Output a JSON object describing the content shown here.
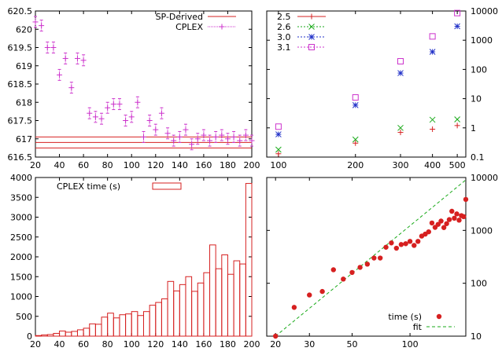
{
  "chart_data": [
    {
      "panel": "top-left",
      "type": "scatter",
      "xlim": [
        20,
        200
      ],
      "ylim": [
        616.5,
        620.5
      ],
      "xticks": [
        20,
        40,
        60,
        80,
        100,
        120,
        140,
        160,
        180,
        200
      ],
      "yticks": [
        616.5,
        617,
        617.5,
        618,
        618.5,
        619,
        619.5,
        620,
        620.5
      ],
      "ytick_labels": [
        "616.5",
        "617",
        "617.5",
        "618",
        "618.5",
        "619",
        "619.5",
        "620",
        "620.5"
      ],
      "legend_position": "top-right",
      "series": [
        {
          "name": "SP-Derived",
          "color": "#d62020",
          "kind": "hlines",
          "y": [
            616.75,
            616.9,
            617.05
          ]
        },
        {
          "name": "CPLEX",
          "color": "#cc33cc",
          "kind": "errorbars",
          "x": [
            20,
            25,
            30,
            35,
            40,
            45,
            50,
            55,
            60,
            65,
            70,
            75,
            80,
            85,
            90,
            95,
            100,
            105,
            110,
            115,
            120,
            125,
            130,
            135,
            140,
            145,
            150,
            155,
            160,
            165,
            170,
            175,
            180,
            185,
            190,
            195,
            200
          ],
          "y": [
            620.2,
            620.1,
            619.5,
            619.5,
            618.75,
            619.2,
            618.4,
            619.2,
            619.15,
            617.7,
            617.6,
            617.55,
            617.85,
            617.95,
            617.95,
            617.5,
            617.6,
            618.0,
            617.05,
            617.5,
            617.25,
            617.7,
            617.15,
            616.95,
            617.05,
            617.25,
            616.85,
            617.0,
            617.1,
            616.95,
            617.05,
            617.1,
            617.0,
            617.05,
            616.95,
            617.1,
            616.95
          ],
          "err": 0.15
        }
      ]
    },
    {
      "panel": "top-right",
      "type": "scatter",
      "xscale": "log",
      "yscale": "log",
      "xlim": [
        90,
        540
      ],
      "ylim": [
        0.1,
        10000
      ],
      "xticks": [
        100,
        200,
        300,
        400,
        500
      ],
      "yticks": [
        0.1,
        1,
        10,
        100,
        1000,
        10000
      ],
      "ytick_labels": [
        "0.1",
        "1",
        "10",
        "100",
        "1000",
        "10000"
      ],
      "legend_position": "top-left",
      "series": [
        {
          "name": "2.5",
          "color": "#d62020",
          "marker": "plus",
          "x": [
            100,
            200,
            300,
            400,
            500
          ],
          "y": [
            0.13,
            0.3,
            0.7,
            0.9,
            1.2
          ]
        },
        {
          "name": "2.6",
          "color": "#1aaa1a",
          "marker": "cross",
          "x": [
            100,
            200,
            300,
            400,
            500
          ],
          "y": [
            0.18,
            0.4,
            1.0,
            1.9,
            1.95
          ]
        },
        {
          "name": "3.0",
          "color": "#2030c8",
          "marker": "asterisk",
          "x": [
            100,
            200,
            300,
            400,
            500
          ],
          "y": [
            0.6,
            6,
            75,
            400,
            3000
          ]
        },
        {
          "name": "3.1",
          "color": "#cc33cc",
          "marker": "square",
          "x": [
            100,
            200,
            300,
            400,
            500
          ],
          "y": [
            1.1,
            11,
            190,
            1350,
            8500
          ]
        }
      ]
    },
    {
      "panel": "bottom-left",
      "type": "bar",
      "xlim": [
        20,
        200
      ],
      "ylim": [
        0,
        4000
      ],
      "xticks": [
        20,
        40,
        60,
        80,
        100,
        120,
        140,
        160,
        180,
        200
      ],
      "yticks": [
        0,
        500,
        1000,
        1500,
        2000,
        2500,
        3000,
        3500,
        4000
      ],
      "legend_position": "top-left",
      "series": [
        {
          "name": "CPLEX time (s)",
          "color": "#d62020",
          "x": [
            20,
            25,
            30,
            35,
            40,
            45,
            50,
            55,
            60,
            65,
            70,
            75,
            80,
            85,
            90,
            95,
            100,
            105,
            110,
            115,
            120,
            125,
            130,
            135,
            140,
            145,
            150,
            155,
            160,
            165,
            170,
            175,
            180,
            185,
            190,
            195
          ],
          "values": [
            15,
            30,
            40,
            70,
            130,
            100,
            120,
            160,
            200,
            310,
            300,
            480,
            580,
            460,
            540,
            560,
            620,
            520,
            620,
            780,
            850,
            940,
            1380,
            1140,
            1300,
            1500,
            1130,
            1340,
            1600,
            2300,
            1700,
            2050,
            1560,
            1900,
            1820,
            3850
          ]
        }
      ]
    },
    {
      "panel": "bottom-right",
      "type": "scatter",
      "xscale": "log",
      "yscale": "log",
      "xlim": [
        18,
        195
      ],
      "ylim": [
        10,
        10000
      ],
      "xticks": [
        20,
        30,
        50,
        100
      ],
      "yticks": [
        10,
        100,
        1000,
        10000
      ],
      "ytick_labels": [
        "10",
        "100",
        "1000",
        "10000"
      ],
      "legend_position": "bottom-right",
      "series": [
        {
          "name": "time (s)",
          "color": "#d62020",
          "marker": "dot",
          "x": [
            20,
            25,
            30,
            35,
            40,
            45,
            50,
            55,
            60,
            65,
            70,
            75,
            80,
            85,
            90,
            95,
            100,
            105,
            110,
            115,
            120,
            125,
            130,
            135,
            140,
            145,
            150,
            155,
            160,
            165,
            170,
            175,
            180,
            185,
            190,
            195
          ],
          "y": [
            10,
            35,
            60,
            70,
            180,
            120,
            160,
            200,
            230,
            300,
            300,
            480,
            580,
            460,
            540,
            560,
            620,
            520,
            620,
            780,
            850,
            940,
            1380,
            1140,
            1300,
            1500,
            1130,
            1340,
            1600,
            2300,
            1700,
            2050,
            1560,
            1900,
            1820,
            3850
          ]
        },
        {
          "name": "fit",
          "color": "#1aaa1a",
          "kind": "line",
          "x": [
            20,
            195
          ],
          "y": [
            10,
            9000
          ]
        }
      ]
    }
  ]
}
